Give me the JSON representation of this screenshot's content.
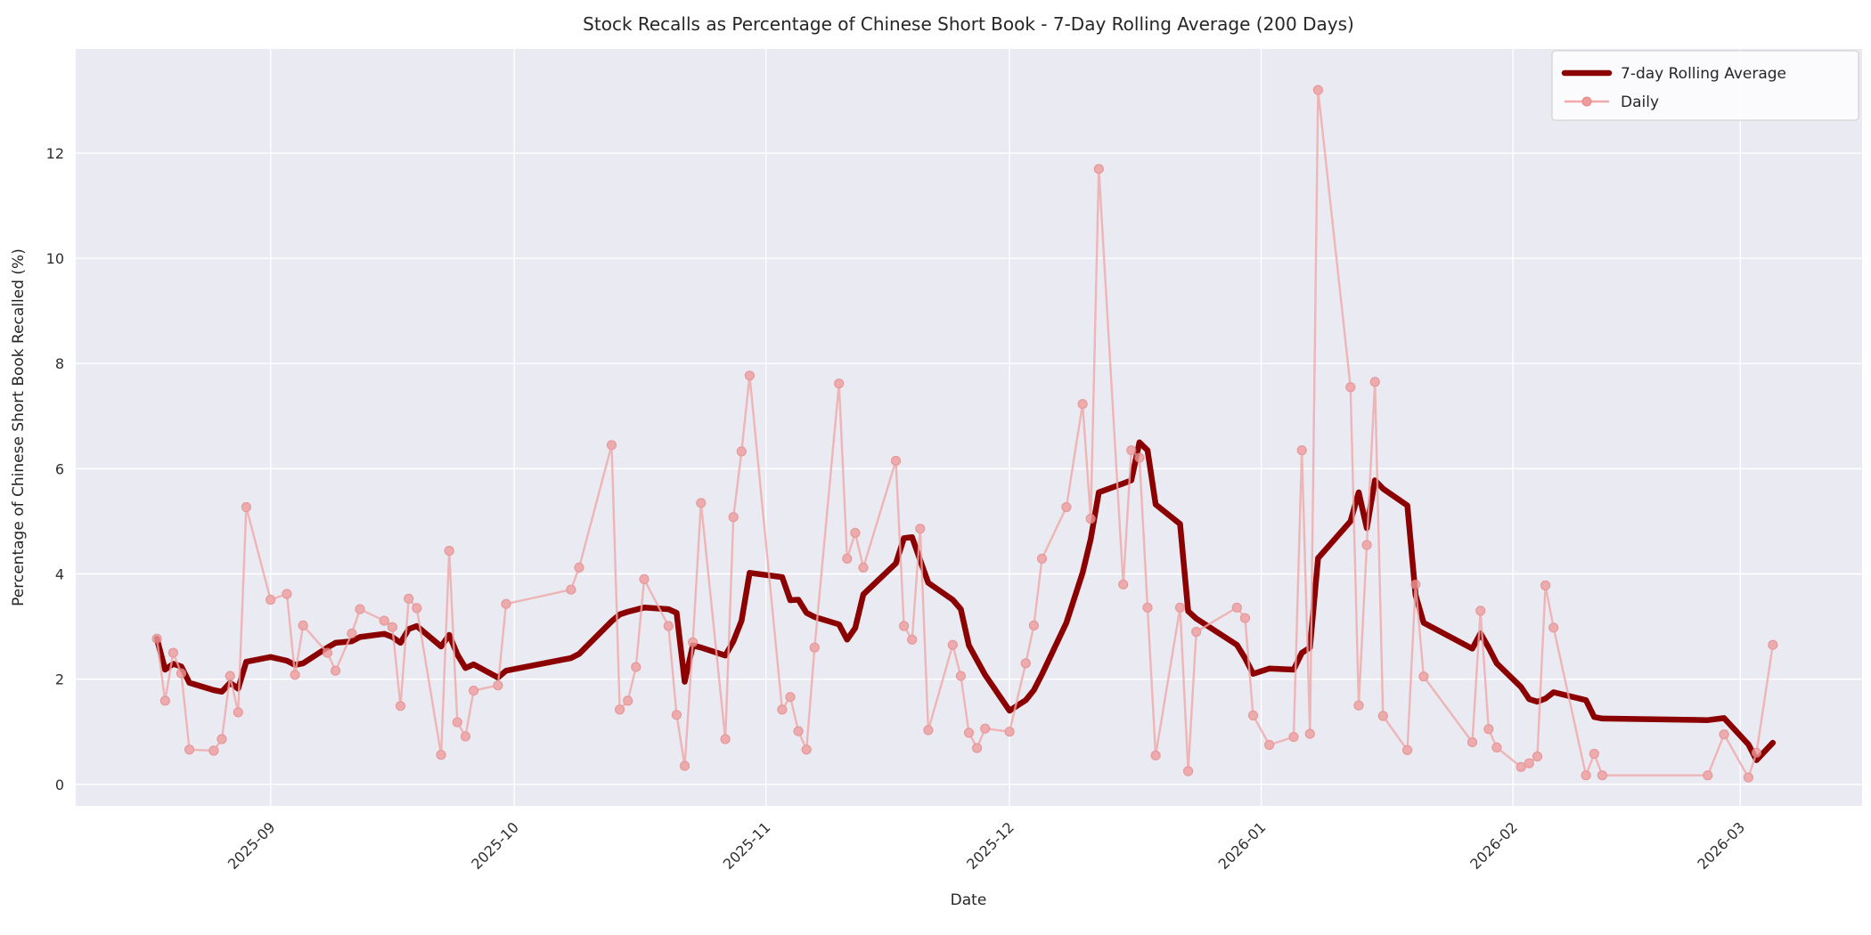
{
  "title": "Stock Recalls as Percentage of Chinese Short Book - 7-Day Rolling Average (200 Days)",
  "axes": {
    "xlabel": "Date",
    "ylabel": "Percentage of Chinese Short Book Recalled (%)"
  },
  "legend": {
    "avg_label": "7-day Rolling Average",
    "daily_label": "Daily"
  },
  "colors": {
    "avg_line": "#8b0000",
    "daily_line": "#f0a8a8",
    "daily_marker": "#ef9c9c",
    "daily_marker_edge": "#e58585",
    "plot_bg": "#eaeaf2",
    "grid": "#ffffff",
    "text": "#2e2e2e",
    "legend_bg": "rgba(255,255,255,0.8)",
    "legend_border": "#cccccc"
  },
  "chart_data": {
    "type": "line",
    "title": "Stock Recalls as Percentage of Chinese Short Book - 7-Day Rolling Average (200 Days)",
    "xlabel": "Date",
    "ylabel": "Percentage of Chinese Short Book Recalled (%)",
    "grid": true,
    "legend_position": "upper right",
    "ylim": [
      -0.41,
      13.98
    ],
    "x_range": [
      "2025-08-08",
      "2026-03-16"
    ],
    "yticks": [
      0,
      2,
      4,
      6,
      8,
      10,
      12
    ],
    "xticks": [
      {
        "pos": "2025-09-01",
        "label": "2025-09"
      },
      {
        "pos": "2025-10-01",
        "label": "2025-10"
      },
      {
        "pos": "2025-11-01",
        "label": "2025-11"
      },
      {
        "pos": "2025-12-01",
        "label": "2025-12"
      },
      {
        "pos": "2026-01-01",
        "label": "2026-01"
      },
      {
        "pos": "2026-02-01",
        "label": "2026-02"
      },
      {
        "pos": "2026-03-01",
        "label": "2026-03"
      }
    ],
    "x": [
      "2025-08-18",
      "2025-08-19",
      "2025-08-20",
      "2025-08-21",
      "2025-08-22",
      "2025-08-25",
      "2025-08-26",
      "2025-08-27",
      "2025-08-28",
      "2025-08-29",
      "2025-09-01",
      "2025-09-03",
      "2025-09-04",
      "2025-09-05",
      "2025-09-08",
      "2025-09-09",
      "2025-09-11",
      "2025-09-12",
      "2025-09-15",
      "2025-09-16",
      "2025-09-17",
      "2025-09-18",
      "2025-09-19",
      "2025-09-22",
      "2025-09-23",
      "2025-09-24",
      "2025-09-25",
      "2025-09-26",
      "2025-09-29",
      "2025-09-30",
      "2025-10-08",
      "2025-10-09",
      "2025-10-13",
      "2025-10-14",
      "2025-10-15",
      "2025-10-16",
      "2025-10-17",
      "2025-10-20",
      "2025-10-21",
      "2025-10-22",
      "2025-10-23",
      "2025-10-24",
      "2025-10-27",
      "2025-10-28",
      "2025-10-29",
      "2025-10-30",
      "2025-11-03",
      "2025-11-04",
      "2025-11-05",
      "2025-11-06",
      "2025-11-07",
      "2025-11-10",
      "2025-11-11",
      "2025-11-12",
      "2025-11-13",
      "2025-11-17",
      "2025-11-18",
      "2025-11-19",
      "2025-11-20",
      "2025-11-21",
      "2025-11-24",
      "2025-11-25",
      "2025-11-26",
      "2025-11-27",
      "2025-11-28",
      "2025-12-01",
      "2025-12-03",
      "2025-12-04",
      "2025-12-05",
      "2025-12-08",
      "2025-12-10",
      "2025-12-11",
      "2025-12-12",
      "2025-12-15",
      "2025-12-16",
      "2025-12-17",
      "2025-12-18",
      "2025-12-19",
      "2025-12-22",
      "2025-12-23",
      "2025-12-24",
      "2025-12-29",
      "2025-12-30",
      "2025-12-31",
      "2026-01-02",
      "2026-01-05",
      "2026-01-06",
      "2026-01-07",
      "2026-01-08",
      "2026-01-12",
      "2026-01-13",
      "2026-01-14",
      "2026-01-15",
      "2026-01-16",
      "2026-01-19",
      "2026-01-20",
      "2026-01-21",
      "2026-01-27",
      "2026-01-28",
      "2026-01-29",
      "2026-01-30",
      "2026-02-02",
      "2026-02-03",
      "2026-02-04",
      "2026-02-05",
      "2026-02-06",
      "2026-02-10",
      "2026-02-11",
      "2026-02-12",
      "2026-02-25",
      "2026-02-27",
      "2026-03-02",
      "2026-03-03",
      "2026-03-05"
    ],
    "series": [
      {
        "name": "7-day Rolling Average",
        "values": [
          2.77,
          2.18,
          2.29,
          2.24,
          1.93,
          1.79,
          1.76,
          1.93,
          1.82,
          2.33,
          2.42,
          2.35,
          2.27,
          2.3,
          2.6,
          2.69,
          2.72,
          2.8,
          2.86,
          2.8,
          2.69,
          2.95,
          3.01,
          2.62,
          2.84,
          2.47,
          2.21,
          2.28,
          2.03,
          2.16,
          2.4,
          2.48,
          3.1,
          3.23,
          3.28,
          3.32,
          3.36,
          3.33,
          3.26,
          1.95,
          2.64,
          2.6,
          2.45,
          2.72,
          3.11,
          4.02,
          3.94,
          3.5,
          3.51,
          3.26,
          3.18,
          3.04,
          2.75,
          2.97,
          3.61,
          4.2,
          4.68,
          4.7,
          4.26,
          3.83,
          3.51,
          3.33,
          2.64,
          2.36,
          2.08,
          1.4,
          1.6,
          1.79,
          2.09,
          3.07,
          4.02,
          4.66,
          5.55,
          5.72,
          5.78,
          6.5,
          6.35,
          5.32,
          4.95,
          3.29,
          3.15,
          2.65,
          2.4,
          2.1,
          2.2,
          2.18,
          2.5,
          2.6,
          4.3,
          5.0,
          5.55,
          4.87,
          5.78,
          5.62,
          5.3,
          3.6,
          3.07,
          2.58,
          2.87,
          2.6,
          2.3,
          1.85,
          1.62,
          1.57,
          1.63,
          1.75,
          1.6,
          1.28,
          1.25,
          1.22,
          1.26,
          0.76,
          0.46,
          0.79
        ]
      },
      {
        "name": "Daily",
        "values": [
          2.77,
          1.59,
          2.5,
          2.11,
          0.66,
          0.64,
          0.86,
          2.06,
          1.37,
          5.27,
          3.51,
          3.62,
          2.08,
          3.02,
          2.5,
          2.16,
          2.87,
          3.33,
          3.11,
          2.99,
          1.49,
          3.53,
          3.35,
          0.56,
          4.44,
          1.18,
          0.91,
          1.78,
          1.88,
          3.43,
          3.7,
          4.12,
          6.45,
          1.42,
          1.59,
          2.23,
          3.9,
          3.01,
          1.32,
          0.35,
          2.7,
          5.35,
          0.86,
          5.08,
          6.33,
          7.77,
          1.42,
          1.66,
          1.01,
          0.66,
          2.6,
          7.62,
          4.29,
          4.78,
          4.12,
          6.15,
          3.01,
          2.75,
          4.86,
          1.03,
          2.65,
          2.06,
          0.98,
          0.69,
          1.06,
          1.0,
          2.3,
          3.02,
          4.29,
          5.27,
          7.23,
          5.05,
          11.7,
          3.8,
          6.35,
          6.21,
          3.36,
          0.55,
          3.36,
          0.25,
          2.9,
          3.36,
          3.16,
          1.31,
          0.75,
          0.9,
          6.35,
          0.96,
          13.2,
          7.55,
          1.5,
          4.55,
          7.65,
          1.3,
          0.65,
          3.8,
          2.05,
          0.8,
          3.3,
          1.05,
          0.7,
          0.33,
          0.4,
          0.53,
          3.78,
          2.98,
          0.17,
          0.58,
          0.17,
          0.17,
          0.95,
          0.13,
          0.6,
          2.65
        ]
      }
    ]
  }
}
